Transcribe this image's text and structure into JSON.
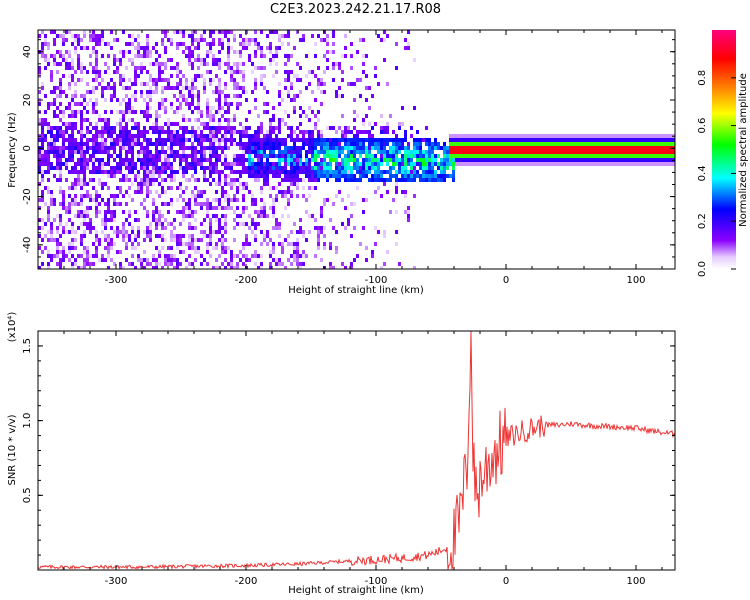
{
  "title": "C2E3.2023.242.21.17.R08",
  "chart_data": [
    {
      "type": "heatmap",
      "xlabel": "Height of straight line (km)",
      "ylabel": "Frequency (Hz)",
      "xlim": [
        -360,
        130
      ],
      "ylim": [
        -50,
        49
      ],
      "xticks": [
        -300,
        -200,
        -100,
        0,
        100
      ],
      "yticks": [
        -40,
        -20,
        0,
        20,
        40
      ],
      "colorbar": {
        "label": "Normalized spectral amplitude",
        "range": [
          0.0,
          1.0
        ],
        "ticks": [
          "0.0",
          "0.2",
          "0.4",
          "0.6",
          "0.8"
        ],
        "colors": [
          "#ffffff",
          "#8a00ff",
          "#0000ff",
          "#00ffff",
          "#00ff00",
          "#ffff00",
          "#ff8000",
          "#ff0000",
          "#ff0080"
        ]
      },
      "features": {
        "noise_region_x": [
          -360,
          -60
        ],
        "bright_trail_x": [
          -200,
          -40
        ],
        "carrier_line": {
          "x_start": -45,
          "x_end": 130,
          "freq": 0,
          "amplitude": 0.9
        }
      }
    },
    {
      "type": "line",
      "xlabel": "Height of straight line (km)",
      "ylabel": "SNR (10 * v/v)",
      "y_multiplier": "(x10⁴)",
      "xlim": [
        -360,
        130
      ],
      "ylim": [
        0,
        1.6
      ],
      "xticks": [
        -300,
        -200,
        -100,
        0,
        100
      ],
      "yticks": [
        "0.5",
        "1.0",
        "1.5"
      ],
      "color": "#ee3333",
      "series": [
        {
          "x": [
            -360,
            -320,
            -280,
            -240,
            -200,
            -160,
            -120,
            -100,
            -80,
            -60,
            -50,
            -45,
            -40,
            -35,
            -30,
            -27,
            -25,
            -22,
            -20,
            -15,
            -10,
            -5,
            0,
            10,
            20,
            30,
            40,
            50,
            60,
            80,
            100,
            120,
            130
          ],
          "y": [
            0.02,
            0.02,
            0.02,
            0.025,
            0.03,
            0.04,
            0.06,
            0.07,
            0.08,
            0.1,
            0.13,
            0.15,
            0.2,
            0.35,
            0.7,
            1.6,
            0.65,
            0.5,
            0.6,
            0.68,
            0.78,
            0.82,
            0.88,
            0.92,
            0.95,
            0.97,
            0.97,
            0.98,
            0.97,
            0.96,
            0.95,
            0.92,
            0.91
          ]
        }
      ]
    }
  ]
}
